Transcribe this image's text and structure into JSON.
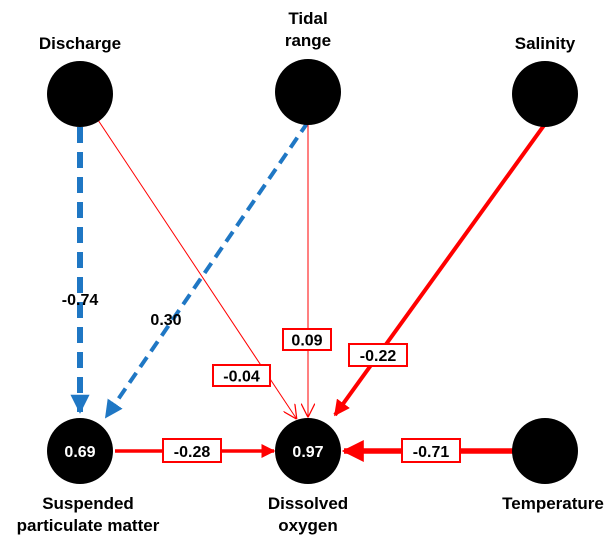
{
  "colors": {
    "node": "#000000",
    "positive": "#ff0000",
    "negative": "#1f77c4",
    "box_border": "#ff0000",
    "box_fill": "#ffffff"
  },
  "nodes": [
    {
      "id": "discharge",
      "label_lines": [
        "Discharge"
      ],
      "value": ""
    },
    {
      "id": "tidal",
      "label_lines": [
        "Tidal",
        "range"
      ],
      "value": ""
    },
    {
      "id": "salinity",
      "label_lines": [
        "Salinity"
      ],
      "value": ""
    },
    {
      "id": "spm",
      "label_lines": [
        "Suspended",
        "particulate matter"
      ],
      "value": "0.69"
    },
    {
      "id": "do",
      "label_lines": [
        "Dissolved",
        "oxygen"
      ],
      "value": "0.97"
    },
    {
      "id": "temp",
      "label_lines": [
        "Temperature"
      ],
      "value": ""
    }
  ],
  "edges": [
    {
      "id": "discharge-spm",
      "from": "discharge",
      "to": "spm",
      "coefficient": "-0.74",
      "style": "dashed",
      "color": "negative",
      "boxed": false
    },
    {
      "id": "tidal-spm",
      "from": "tidal",
      "to": "spm",
      "coefficient": "0.30",
      "style": "dashed",
      "color": "negative",
      "boxed": false
    },
    {
      "id": "discharge-do",
      "from": "discharge",
      "to": "do",
      "coefficient": "-0.04",
      "style": "solid",
      "color": "positive",
      "boxed": true
    },
    {
      "id": "tidal-do",
      "from": "tidal",
      "to": "do",
      "coefficient": "0.09",
      "style": "solid",
      "color": "positive",
      "boxed": true
    },
    {
      "id": "salinity-do",
      "from": "salinity",
      "to": "do",
      "coefficient": "-0.22",
      "style": "solid",
      "color": "positive",
      "boxed": true
    },
    {
      "id": "spm-do",
      "from": "spm",
      "to": "do",
      "coefficient": "-0.28",
      "style": "solid",
      "color": "positive",
      "boxed": true
    },
    {
      "id": "temp-do",
      "from": "temp",
      "to": "do",
      "coefficient": "-0.71",
      "style": "solid",
      "color": "positive",
      "boxed": true
    }
  ]
}
